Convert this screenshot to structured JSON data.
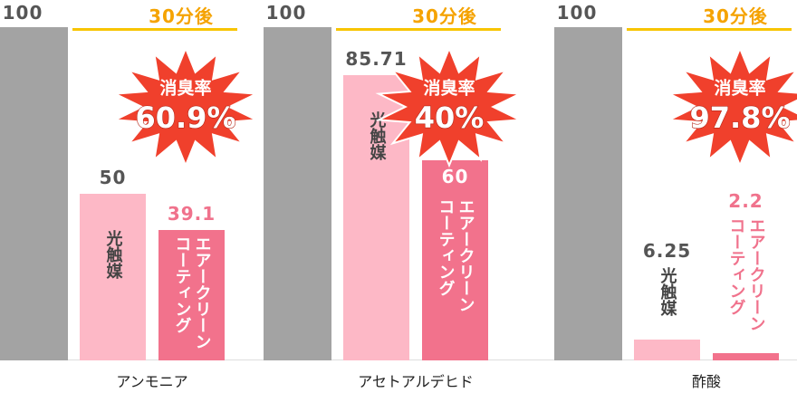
{
  "chart_data": {
    "type": "bar",
    "annotation": "30分後",
    "categories": [
      "アンモニア",
      "アセトアルデヒド",
      "酢酸"
    ],
    "series": [
      {
        "color": "#a3a3a3",
        "values": [
          100,
          100,
          100
        ]
      },
      {
        "name": "光触媒",
        "color": "#fdb8c6",
        "values": [
          50,
          85.71,
          6.25
        ]
      },
      {
        "name": "エアークリーン コーティング",
        "color": "#f2728c",
        "values": [
          39.1,
          60,
          2.2
        ]
      }
    ],
    "reduction": {
      "label": "消臭率",
      "color": "#f0402c",
      "values": [
        60.9,
        40,
        97.8
      ],
      "value_labels": [
        "60.9%",
        "40%",
        "97.8%"
      ]
    }
  }
}
